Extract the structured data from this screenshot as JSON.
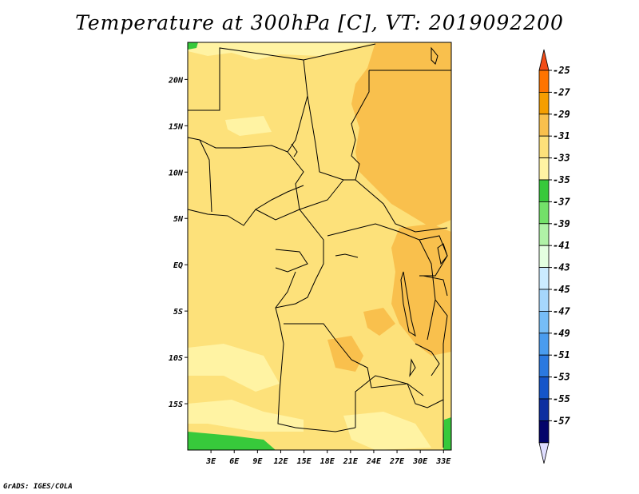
{
  "title": "Temperature at 300hPa [C], VT: 2019092200",
  "footer": "GrADS: IGES/COLA",
  "map": {
    "lon_range": [
      0,
      34
    ],
    "lat_range": [
      -20,
      24
    ],
    "lon_ticks": [
      "3E",
      "6E",
      "9E",
      "12E",
      "15E",
      "18E",
      "21E",
      "24E",
      "27E",
      "30E",
      "33E"
    ],
    "lat_ticks": [
      "20N",
      "15N",
      "10N",
      "5N",
      "EQ",
      "5S",
      "10S",
      "15S"
    ],
    "colors": {
      "base_fill": "#fde17a",
      "warmer_fill": "#f9c04d",
      "cooler_fill": "#fff3a3",
      "green_fill": "#37c93b",
      "border": "#000000"
    }
  },
  "colorbar": {
    "labels": [
      "-25",
      "-27",
      "-29",
      "-31",
      "-33",
      "-35",
      "-37",
      "-39",
      "-41",
      "-43",
      "-45",
      "-47",
      "-49",
      "-51",
      "-53",
      "-55",
      "-57"
    ],
    "colors": [
      "#f24c17",
      "#fe7400",
      "#f59e00",
      "#f9c04d",
      "#fde17a",
      "#fff3a3",
      "#37c93b",
      "#73e169",
      "#b0f2a7",
      "#e4ffe1",
      "#cbebff",
      "#a6d7fc",
      "#76bdf7",
      "#4a9cef",
      "#2b79e0",
      "#1555c9",
      "#0d2fa0",
      "#04046a",
      "#e0deff"
    ]
  }
}
